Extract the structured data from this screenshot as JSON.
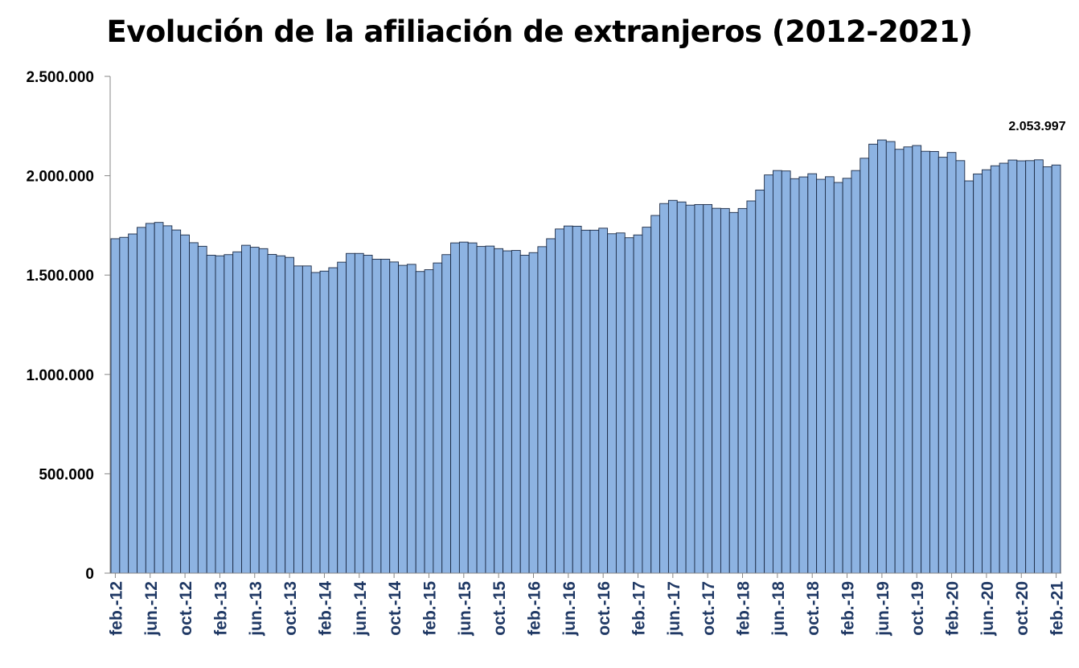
{
  "chart_data": {
    "type": "bar",
    "title": "Evolución de la afiliación de extranjeros (2012-2021)",
    "xlabel": "",
    "ylabel": "",
    "ylim": [
      0,
      2500000
    ],
    "yticks": [
      0,
      500000,
      1000000,
      1500000,
      2000000,
      2500000
    ],
    "ytick_labels": [
      "0",
      "500.000",
      "1.000.000",
      "1.500.000",
      "2.000.000",
      "2.500.000"
    ],
    "grid": false,
    "legend": "none",
    "bar_color": "#8db3e2",
    "edge_color": "#1b2a44",
    "tick_label_color": "#1f3864",
    "categories": [
      "feb.-12",
      "mar.-12",
      "abr.-12",
      "may.-12",
      "jun.-12",
      "jul.-12",
      "ago.-12",
      "sep.-12",
      "oct.-12",
      "nov.-12",
      "dic.-12",
      "ene.-13",
      "feb.-13",
      "mar.-13",
      "abr.-13",
      "may.-13",
      "jun.-13",
      "jul.-13",
      "ago.-13",
      "sep.-13",
      "oct.-13",
      "nov.-13",
      "dic.-13",
      "ene.-14",
      "feb.-14",
      "mar.-14",
      "abr.-14",
      "may.-14",
      "jun.-14",
      "jul.-14",
      "ago.-14",
      "sep.-14",
      "oct.-14",
      "nov.-14",
      "dic.-14",
      "ene.-15",
      "feb.-15",
      "mar.-15",
      "abr.-15",
      "may.-15",
      "jun.-15",
      "jul.-15",
      "ago.-15",
      "sep.-15",
      "oct.-15",
      "nov.-15",
      "dic.-15",
      "ene.-16",
      "feb.-16",
      "mar.-16",
      "abr.-16",
      "may.-16",
      "jun.-16",
      "jul.-16",
      "ago.-16",
      "sep.-16",
      "oct.-16",
      "nov.-16",
      "dic.-16",
      "ene.-17",
      "feb.-17",
      "mar.-17",
      "abr.-17",
      "may.-17",
      "jun.-17",
      "jul.-17",
      "ago.-17",
      "sep.-17",
      "oct.-17",
      "nov.-17",
      "dic.-17",
      "ene.-18",
      "feb.-18",
      "mar.-18",
      "abr.-18",
      "may.-18",
      "jun.-18",
      "jul.-18",
      "ago.-18",
      "sep.-18",
      "oct.-18",
      "nov.-18",
      "dic.-18",
      "ene.-19",
      "feb.-19",
      "mar.-19",
      "abr.-19",
      "may.-19",
      "jun.-19",
      "jul.-19",
      "ago.-19",
      "sep.-19",
      "oct.-19",
      "nov.-19",
      "dic.-19",
      "ene.-20",
      "feb.-20",
      "mar.-20",
      "abr.-20",
      "may.-20",
      "jun.-20",
      "jul.-20",
      "ago.-20",
      "sep.-20",
      "oct.-20",
      "nov.-20",
      "dic.-20",
      "ene.-21",
      "feb.-21"
    ],
    "xtick_labels": [
      "feb.-12",
      "jun.-12",
      "oct.-12",
      "feb.-13",
      "jun.-13",
      "oct.-13",
      "feb.-14",
      "jun.-14",
      "oct.-14",
      "feb.-15",
      "jun.-15",
      "oct.-15",
      "feb.-16",
      "jun.-16",
      "oct.-16",
      "feb.-17",
      "jun.-17",
      "oct.-17",
      "feb.-18",
      "jun.-18",
      "oct.-18",
      "feb.-19",
      "jun.-19",
      "oct.-19",
      "feb.-20",
      "jun.-20",
      "oct.-20",
      "feb.-21"
    ],
    "values": [
      1683000,
      1690000,
      1707000,
      1740000,
      1760000,
      1765000,
      1748000,
      1727000,
      1702000,
      1663000,
      1645000,
      1600000,
      1597000,
      1603000,
      1617000,
      1650000,
      1640000,
      1633000,
      1604000,
      1597000,
      1589000,
      1546000,
      1546000,
      1513000,
      1520000,
      1537000,
      1565000,
      1609000,
      1609000,
      1600000,
      1580000,
      1580000,
      1566000,
      1549000,
      1554000,
      1518000,
      1527000,
      1561000,
      1603000,
      1662000,
      1666000,
      1662000,
      1644000,
      1646000,
      1633000,
      1622000,
      1624000,
      1600000,
      1613000,
      1643000,
      1683000,
      1732000,
      1747000,
      1746000,
      1726000,
      1726000,
      1736000,
      1708000,
      1712000,
      1688000,
      1702000,
      1741000,
      1800000,
      1860000,
      1876000,
      1868000,
      1852000,
      1855000,
      1855000,
      1836000,
      1835000,
      1815000,
      1835000,
      1873000,
      1928000,
      2004000,
      2026000,
      2024000,
      1985000,
      1994000,
      2010000,
      1982000,
      1995000,
      1966000,
      1987000,
      2026000,
      2088000,
      2159000,
      2180000,
      2172000,
      2133000,
      2145000,
      2152000,
      2123000,
      2122000,
      2093000,
      2117000,
      2076000,
      1974000,
      2009000,
      2030000,
      2050000,
      2063000,
      2079000,
      2075000,
      2076000,
      2080000,
      2045000,
      2053997
    ],
    "annotation": {
      "category": "feb.-21",
      "label": "2.053.997"
    }
  }
}
